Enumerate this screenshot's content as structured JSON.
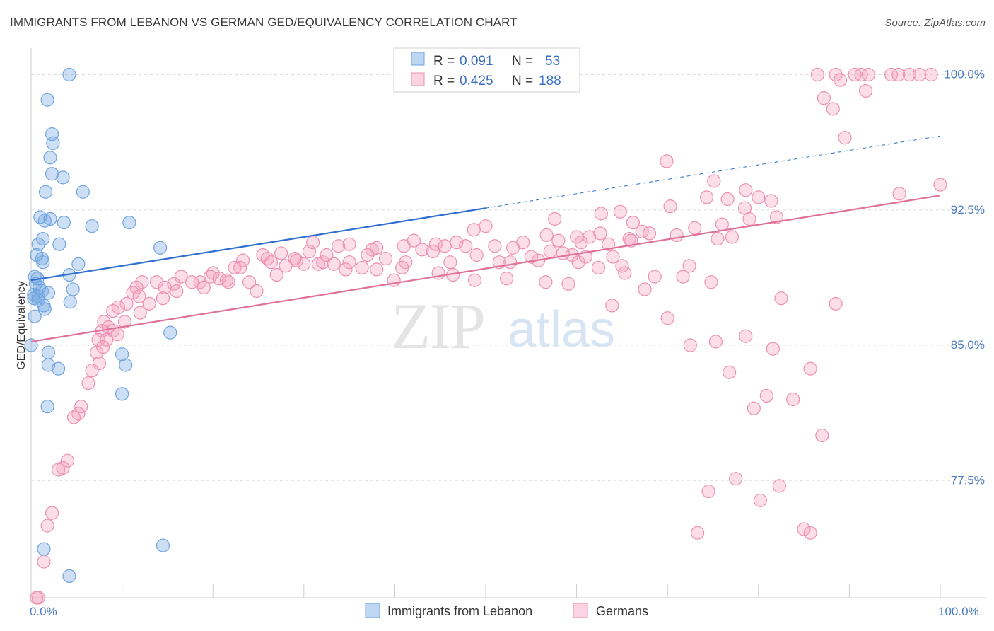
{
  "title": "IMMIGRANTS FROM LEBANON VS GERMAN GED/EQUIVALENCY CORRELATION CHART",
  "source": "Source: ZipAtlas.com",
  "watermark": {
    "zip": "ZIP",
    "atlas": "atlas"
  },
  "colors": {
    "blue": "#6fa3e0",
    "blue_fill": "rgba(111,163,224,0.35)",
    "blue_line": "#2f6fd0",
    "pink": "#ee8fb0",
    "pink_fill": "rgba(244,160,190,0.35)",
    "pink_line": "#e0709a",
    "grid": "#dddddd",
    "tick_label": "#4a7bc4"
  },
  "legend": {
    "rows": [
      {
        "r_label": "R =",
        "r_value": "0.091",
        "n_label": "N =",
        "n_value": "53",
        "series": "blue"
      },
      {
        "r_label": "R =",
        "r_value": "0.425",
        "n_label": "N =",
        "n_value": "188",
        "series": "pink"
      }
    ]
  },
  "chart_data": {
    "type": "scatter",
    "title": "IMMIGRANTS FROM LEBANON VS GERMAN GED/EQUIVALENCY CORRELATION CHART",
    "xlabel": "",
    "ylabel": "GED/Equivalency",
    "xlim": [
      0,
      100
    ],
    "ylim": [
      71,
      101
    ],
    "x_tick_labels": [
      "0.0%",
      "100.0%"
    ],
    "y_ticks": [
      77.5,
      85.0,
      92.5,
      100.0
    ],
    "y_tick_labels": [
      "77.5%",
      "85.0%",
      "92.5%",
      "100.0%"
    ],
    "grid": true,
    "legend_placement": "bottom",
    "series": [
      {
        "name": "Immigrants from Lebanon",
        "color": "blue",
        "trend": {
          "x": [
            0,
            50
          ],
          "y": [
            88.6,
            92.6
          ],
          "dashed_to": [
            100,
            96.6
          ]
        },
        "points": [
          [
            4.2,
            100.0
          ],
          [
            1.8,
            98.6
          ],
          [
            2.3,
            96.7
          ],
          [
            2.4,
            96.2
          ],
          [
            2.1,
            95.4
          ],
          [
            2.3,
            94.5
          ],
          [
            3.5,
            94.3
          ],
          [
            1.6,
            93.5
          ],
          [
            5.7,
            93.5
          ],
          [
            1.0,
            92.1
          ],
          [
            2.1,
            92.0
          ],
          [
            1.5,
            91.9
          ],
          [
            3.6,
            91.8
          ],
          [
            10.8,
            91.8
          ],
          [
            6.7,
            91.6
          ],
          [
            1.3,
            90.9
          ],
          [
            0.8,
            90.6
          ],
          [
            3.1,
            90.6
          ],
          [
            14.2,
            90.4
          ],
          [
            0.6,
            90.0
          ],
          [
            1.2,
            89.8
          ],
          [
            1.3,
            89.6
          ],
          [
            5.2,
            89.5
          ],
          [
            4.2,
            88.9
          ],
          [
            0.4,
            88.8
          ],
          [
            0.7,
            88.7
          ],
          [
            0.5,
            88.4
          ],
          [
            0.9,
            88.2
          ],
          [
            4.6,
            88.1
          ],
          [
            1.2,
            88.0
          ],
          [
            1.9,
            87.9
          ],
          [
            0.3,
            87.8
          ],
          [
            0.8,
            87.7
          ],
          [
            0.3,
            87.6
          ],
          [
            0.8,
            87.5
          ],
          [
            4.3,
            87.4
          ],
          [
            1.4,
            87.2
          ],
          [
            1.5,
            87.0
          ],
          [
            0.4,
            86.6
          ],
          [
            15.3,
            85.7
          ],
          [
            0.0,
            85.0
          ],
          [
            1.9,
            84.6
          ],
          [
            10.0,
            84.5
          ],
          [
            1.9,
            83.9
          ],
          [
            10.4,
            83.9
          ],
          [
            3.0,
            83.7
          ],
          [
            10.0,
            82.3
          ],
          [
            1.8,
            81.6
          ],
          [
            14.5,
            73.9
          ],
          [
            1.4,
            73.7
          ],
          [
            4.2,
            72.2
          ]
        ]
      },
      {
        "name": "Germans",
        "color": "pink",
        "trend": {
          "x": [
            0,
            100
          ],
          "y": [
            85.2,
            93.3
          ]
        },
        "points": [
          [
            86.5,
            100.0
          ],
          [
            88.5,
            100.0
          ],
          [
            91.3,
            100.0
          ],
          [
            92.1,
            100.0
          ],
          [
            94.6,
            100.0
          ],
          [
            96.6,
            100.0
          ],
          [
            97.7,
            100.0
          ],
          [
            99.0,
            100.0
          ],
          [
            95.4,
            100.0
          ],
          [
            90.6,
            100.0
          ],
          [
            89.0,
            99.7
          ],
          [
            91.8,
            99.1
          ],
          [
            87.2,
            98.7
          ],
          [
            88.2,
            98.1
          ],
          [
            89.5,
            96.5
          ],
          [
            69.9,
            95.2
          ],
          [
            75.1,
            94.1
          ],
          [
            78.6,
            93.6
          ],
          [
            95.5,
            93.4
          ],
          [
            100.0,
            93.9
          ],
          [
            74.3,
            93.2
          ],
          [
            80.0,
            93.2
          ],
          [
            76.6,
            93.1
          ],
          [
            81.4,
            93.0
          ],
          [
            70.3,
            92.7
          ],
          [
            78.5,
            92.6
          ],
          [
            64.8,
            92.4
          ],
          [
            62.7,
            92.3
          ],
          [
            57.6,
            92.0
          ],
          [
            66.2,
            91.8
          ],
          [
            76.0,
            91.7
          ],
          [
            50.0,
            91.6
          ],
          [
            48.7,
            91.4
          ],
          [
            67.2,
            91.3
          ],
          [
            62.6,
            91.2
          ],
          [
            56.7,
            91.1
          ],
          [
            77.1,
            91.0
          ],
          [
            61.4,
            91.0
          ],
          [
            65.8,
            90.9
          ],
          [
            42.1,
            90.8
          ],
          [
            60.5,
            90.7
          ],
          [
            54.1,
            90.7
          ],
          [
            46.8,
            90.7
          ],
          [
            33.8,
            90.5
          ],
          [
            38.0,
            90.4
          ],
          [
            30.6,
            90.2
          ],
          [
            44.2,
            90.2
          ],
          [
            57.1,
            90.2
          ],
          [
            59.5,
            90.0
          ],
          [
            64.0,
            89.9
          ],
          [
            26.0,
            89.8
          ],
          [
            29.2,
            89.7
          ],
          [
            23.3,
            89.7
          ],
          [
            33.3,
            89.5
          ],
          [
            28.0,
            89.4
          ],
          [
            31.6,
            89.5
          ],
          [
            35.0,
            89.6
          ],
          [
            41.2,
            89.6
          ],
          [
            46.1,
            89.6
          ],
          [
            52.7,
            89.6
          ],
          [
            55.8,
            89.7
          ],
          [
            60.2,
            89.6
          ],
          [
            65.3,
            89.0
          ],
          [
            62.4,
            89.3
          ],
          [
            68.6,
            88.8
          ],
          [
            71.7,
            88.8
          ],
          [
            74.8,
            88.5
          ],
          [
            67.5,
            88.1
          ],
          [
            59.1,
            88.4
          ],
          [
            52.3,
            88.7
          ],
          [
            46.4,
            88.9
          ],
          [
            44.8,
            89.0
          ],
          [
            40.8,
            89.3
          ],
          [
            38.0,
            89.2
          ],
          [
            36.4,
            89.3
          ],
          [
            30.0,
            89.5
          ],
          [
            26.4,
            89.6
          ],
          [
            22.4,
            89.3
          ],
          [
            20.0,
            89.0
          ],
          [
            19.7,
            88.8
          ],
          [
            18.6,
            88.5
          ],
          [
            17.7,
            88.5
          ],
          [
            16.5,
            88.8
          ],
          [
            15.7,
            88.4
          ],
          [
            14.7,
            88.2
          ],
          [
            13.8,
            88.5
          ],
          [
            12.2,
            88.5
          ],
          [
            11.6,
            88.2
          ],
          [
            11.2,
            87.9
          ],
          [
            11.9,
            87.7
          ],
          [
            10.5,
            87.3
          ],
          [
            9.6,
            87.1
          ],
          [
            9.0,
            86.9
          ],
          [
            8.0,
            86.3
          ],
          [
            8.5,
            86.0
          ],
          [
            7.8,
            85.8
          ],
          [
            9.5,
            85.6
          ],
          [
            7.4,
            85.3
          ],
          [
            7.2,
            84.6
          ],
          [
            7.5,
            84.0
          ],
          [
            6.7,
            83.6
          ],
          [
            6.3,
            82.9
          ],
          [
            5.5,
            81.6
          ],
          [
            5.2,
            81.2
          ],
          [
            4.7,
            81.0
          ],
          [
            4.0,
            78.6
          ],
          [
            3.5,
            78.2
          ],
          [
            3.0,
            78.1
          ],
          [
            2.3,
            75.7
          ],
          [
            1.8,
            75.0
          ],
          [
            1.4,
            73.0
          ],
          [
            0.8,
            71.0
          ],
          [
            0.6,
            71.0
          ],
          [
            83.8,
            82.0
          ],
          [
            87.0,
            80.0
          ],
          [
            76.8,
            83.5
          ],
          [
            79.5,
            81.5
          ],
          [
            81.6,
            84.8
          ],
          [
            85.7,
            83.7
          ],
          [
            80.9,
            82.2
          ],
          [
            74.5,
            76.9
          ],
          [
            80.2,
            76.4
          ],
          [
            77.5,
            77.6
          ],
          [
            82.3,
            77.2
          ],
          [
            73.3,
            74.6
          ],
          [
            85.0,
            74.8
          ],
          [
            85.7,
            74.6
          ],
          [
            82.5,
            87.6
          ],
          [
            88.5,
            87.3
          ],
          [
            70.0,
            86.5
          ],
          [
            72.5,
            85.0
          ],
          [
            75.3,
            85.2
          ],
          [
            78.6,
            85.5
          ],
          [
            63.9,
            87.2
          ],
          [
            56.6,
            88.5
          ],
          [
            48.8,
            88.6
          ],
          [
            39.9,
            88.6
          ],
          [
            34.6,
            89.2
          ],
          [
            32.1,
            89.6
          ],
          [
            27.0,
            88.9
          ],
          [
            24.0,
            88.5
          ],
          [
            21.7,
            88.5
          ],
          [
            20.7,
            88.7
          ],
          [
            24.8,
            88.0
          ],
          [
            31.0,
            90.7
          ],
          [
            35.0,
            90.6
          ],
          [
            37.5,
            90.3
          ],
          [
            41.0,
            90.5
          ],
          [
            44.5,
            90.6
          ],
          [
            47.8,
            90.5
          ],
          [
            51.0,
            90.5
          ],
          [
            53.0,
            90.4
          ],
          [
            58.0,
            90.8
          ],
          [
            60.0,
            91.0
          ],
          [
            63.5,
            90.6
          ],
          [
            66.0,
            90.8
          ],
          [
            68.0,
            91.2
          ],
          [
            71.0,
            91.1
          ],
          [
            73.0,
            91.5
          ],
          [
            75.5,
            90.9
          ],
          [
            79.0,
            92.0
          ],
          [
            82.0,
            92.1
          ],
          [
            72.4,
            89.4
          ],
          [
            65.0,
            89.4
          ],
          [
            61.0,
            89.9
          ],
          [
            58.5,
            90.1
          ],
          [
            55.0,
            89.9
          ],
          [
            51.5,
            89.6
          ],
          [
            49.0,
            90.0
          ],
          [
            45.5,
            90.5
          ],
          [
            43.0,
            90.3
          ],
          [
            39.0,
            89.8
          ],
          [
            37.0,
            90.0
          ],
          [
            32.5,
            90.0
          ],
          [
            29.0,
            89.8
          ],
          [
            27.5,
            90.1
          ],
          [
            25.5,
            90.0
          ],
          [
            23.0,
            89.3
          ],
          [
            21.5,
            88.6
          ],
          [
            19.0,
            88.2
          ],
          [
            16.0,
            88.0
          ],
          [
            14.5,
            87.6
          ],
          [
            13.0,
            87.3
          ],
          [
            12.0,
            86.8
          ],
          [
            10.3,
            86.3
          ],
          [
            9.0,
            85.8
          ],
          [
            8.3,
            85.3
          ],
          [
            7.9,
            84.9
          ]
        ]
      }
    ]
  },
  "bottom_legend": {
    "items": [
      {
        "label": "Immigrants from Lebanon",
        "series": "blue"
      },
      {
        "label": "Germans",
        "series": "pink"
      }
    ]
  }
}
